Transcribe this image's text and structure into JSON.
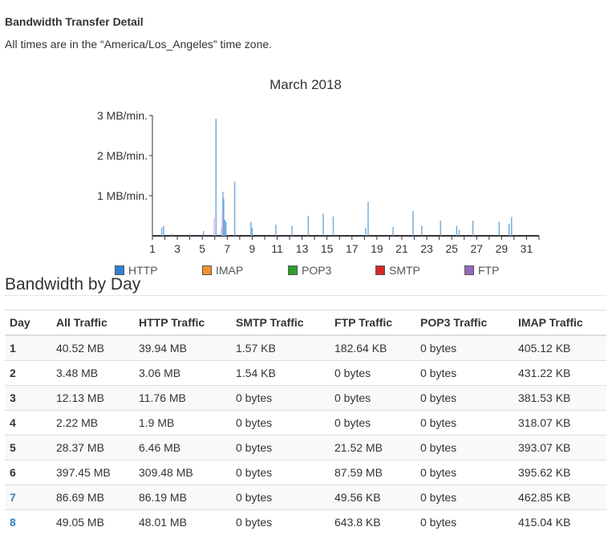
{
  "page": {
    "section_title": "Bandwidth Transfer Detail",
    "timezone_note": "All times are in the “America/Los_Angeles” time zone.",
    "table_heading": "Bandwidth by Day"
  },
  "chart_data": {
    "type": "bar",
    "title": "March 2018",
    "y_ticks": [
      "1 MB/min.",
      "2 MB/min.",
      "3 MB/min."
    ],
    "y_tick_values": [
      1,
      2,
      3
    ],
    "ylim": [
      0,
      3
    ],
    "xlim": [
      1,
      32
    ],
    "x_ticks": [
      1,
      3,
      5,
      7,
      9,
      11,
      13,
      15,
      17,
      19,
      21,
      23,
      25,
      27,
      29,
      31
    ],
    "x_tick_labels": [
      "1",
      "3",
      "5",
      "7",
      "9",
      "11",
      "13",
      "15",
      "17",
      "19",
      "21",
      "23",
      "25",
      "27",
      "29",
      "31"
    ],
    "legend": [
      "HTTP",
      "IMAP",
      "POP3",
      "SMTP",
      "FTP"
    ],
    "legend_colors": [
      "#2f7ed8",
      "#f28f2c",
      "#2ca02c",
      "#d62728",
      "#9467bd"
    ],
    "legend_placement": "bottom",
    "series": [
      {
        "name": "HTTP",
        "color": "#6fa8dc",
        "x": [
          1.75,
          1.9,
          2.6,
          4.0,
          5.1,
          6.1,
          6.55,
          6.65,
          6.72,
          6.8,
          6.9,
          7.6,
          8.9,
          9.0,
          10.9,
          12.2,
          13.5,
          14.7,
          15.5,
          18.1,
          18.3,
          20.3,
          21.9,
          22.6,
          24.1,
          25.4,
          25.6,
          26.7,
          28.8,
          29.6,
          29.8
        ],
        "y": [
          0.2,
          0.25,
          0.05,
          0.04,
          0.12,
          2.92,
          0.18,
          1.1,
          0.92,
          0.4,
          0.35,
          1.35,
          0.35,
          0.2,
          0.28,
          0.25,
          0.5,
          0.55,
          0.48,
          0.2,
          0.85,
          0.22,
          0.62,
          0.25,
          0.38,
          0.25,
          0.15,
          0.38,
          0.35,
          0.3,
          0.47
        ]
      },
      {
        "name": "FTP",
        "color": "#d8b4e8",
        "x": [
          5.95,
          6.6
        ],
        "y": [
          0.45,
          0.6
        ]
      }
    ]
  },
  "table": {
    "headers": [
      "Day",
      "All Traffic",
      "HTTP Traffic",
      "SMTP Traffic",
      "FTP Traffic",
      "POP3 Traffic",
      "IMAP Traffic"
    ],
    "rows": [
      {
        "day": "1",
        "link": false,
        "all": "40.52 MB",
        "http": "39.94 MB",
        "smtp": "1.57 KB",
        "ftp": "182.64 KB",
        "pop3": "0 bytes",
        "imap": "405.12 KB"
      },
      {
        "day": "2",
        "link": false,
        "all": "3.48 MB",
        "http": "3.06 MB",
        "smtp": "1.54 KB",
        "ftp": "0 bytes",
        "pop3": "0 bytes",
        "imap": "431.22 KB"
      },
      {
        "day": "3",
        "link": false,
        "all": "12.13 MB",
        "http": "11.76 MB",
        "smtp": "0 bytes",
        "ftp": "0 bytes",
        "pop3": "0 bytes",
        "imap": "381.53 KB"
      },
      {
        "day": "4",
        "link": false,
        "all": "2.22 MB",
        "http": "1.9 MB",
        "smtp": "0 bytes",
        "ftp": "0 bytes",
        "pop3": "0 bytes",
        "imap": "318.07 KB"
      },
      {
        "day": "5",
        "link": false,
        "all": "28.37 MB",
        "http": "6.46 MB",
        "smtp": "0 bytes",
        "ftp": "21.52 MB",
        "pop3": "0 bytes",
        "imap": "393.07 KB"
      },
      {
        "day": "6",
        "link": false,
        "all": "397.45 MB",
        "http": "309.48 MB",
        "smtp": "0 bytes",
        "ftp": "87.59 MB",
        "pop3": "0 bytes",
        "imap": "395.62 KB"
      },
      {
        "day": "7",
        "link": true,
        "all": "86.69 MB",
        "http": "86.19 MB",
        "smtp": "0 bytes",
        "ftp": "49.56 KB",
        "pop3": "0 bytes",
        "imap": "462.85 KB"
      },
      {
        "day": "8",
        "link": true,
        "all": "49.05 MB",
        "http": "48.01 MB",
        "smtp": "0 bytes",
        "ftp": "643.8 KB",
        "pop3": "0 bytes",
        "imap": "415.04 KB"
      }
    ]
  }
}
